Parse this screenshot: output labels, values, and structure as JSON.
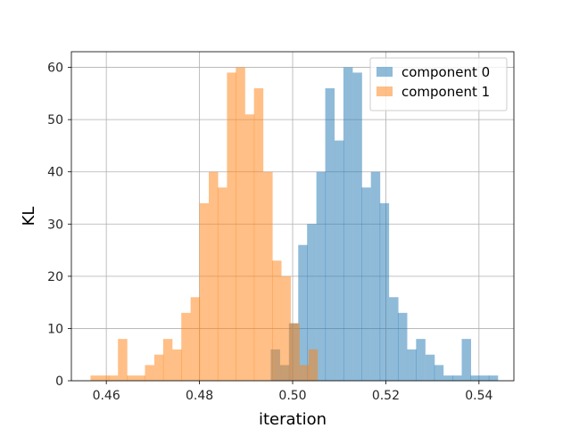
{
  "chart_data": {
    "type": "bar",
    "title": "",
    "xlabel": "iteration",
    "ylabel": "KL",
    "xlim": [
      0.4525,
      0.5475
    ],
    "ylim": [
      0,
      63
    ],
    "xticks": [
      0.46,
      0.48,
      0.5,
      0.52,
      0.54
    ],
    "xtick_labels": [
      "0.46",
      "0.48",
      "0.50",
      "0.52",
      "0.54"
    ],
    "yticks": [
      0,
      10,
      20,
      30,
      40,
      50,
      60
    ],
    "ytick_labels": [
      "0",
      "10",
      "20",
      "30",
      "40",
      "50",
      "60"
    ],
    "grid": true,
    "legend_position": "top-right",
    "bin_width": 0.00195,
    "series": [
      {
        "name": "component 0",
        "color": "#1f77b4",
        "alpha": 0.5,
        "bin_left": [
          0.4953,
          0.4973,
          0.4992,
          0.5012,
          0.5031,
          0.5051,
          0.507,
          0.509,
          0.5109,
          0.5129,
          0.5148,
          0.5168,
          0.5187,
          0.5207,
          0.5226,
          0.5246,
          0.5265,
          0.5285,
          0.5304,
          0.5324,
          0.5343,
          0.5363,
          0.5382,
          0.5402,
          0.5421
        ],
        "values": [
          6,
          3,
          11,
          26,
          30,
          40,
          56,
          46,
          60,
          59,
          37,
          40,
          34,
          16,
          13,
          6,
          8,
          5,
          3,
          1,
          1,
          8,
          1,
          1,
          1
        ]
      },
      {
        "name": "component 1",
        "color": "#ff7f0e",
        "alpha": 0.5,
        "bin_left": [
          0.4566,
          0.4586,
          0.4605,
          0.4625,
          0.4644,
          0.4664,
          0.4683,
          0.4703,
          0.4722,
          0.4742,
          0.4761,
          0.4781,
          0.48,
          0.482,
          0.4839,
          0.4859,
          0.4878,
          0.4898,
          0.4917,
          0.4937,
          0.4956,
          0.4976,
          0.4995,
          0.5015,
          0.5034
        ],
        "values": [
          1,
          1,
          1,
          8,
          1,
          1,
          3,
          5,
          8,
          6,
          13,
          16,
          34,
          40,
          37,
          59,
          60,
          51,
          56,
          40,
          23,
          20,
          11,
          3,
          6
        ]
      }
    ]
  }
}
